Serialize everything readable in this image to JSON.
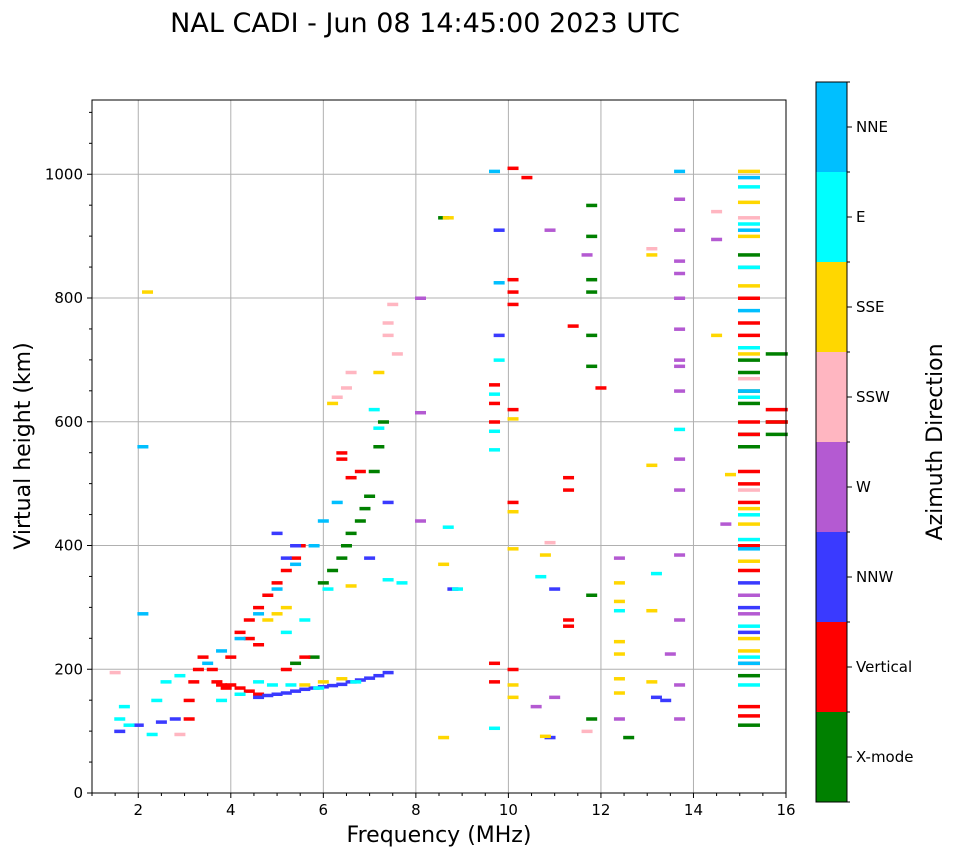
{
  "chart_data": {
    "type": "scatter",
    "title": "NAL CADI - Jun 08 14:45:00 2023 UTC",
    "xlabel": "Frequency (MHz)",
    "ylabel": "Virtual height (km)",
    "xlim": [
      1,
      16
    ],
    "ylim": [
      0,
      1120
    ],
    "xticks": [
      2,
      4,
      6,
      8,
      10,
      12,
      14,
      16
    ],
    "yticks": [
      0,
      200,
      400,
      600,
      800,
      1000
    ],
    "grid": true,
    "colorbar": {
      "label": "Azimuth Direction",
      "categories": [
        "X-mode",
        "Vertical",
        "NNW",
        "W",
        "SSW",
        "SSE",
        "E",
        "NNE"
      ],
      "colors": [
        "#008000",
        "#ff0000",
        "#3a3aff",
        "#b45ad2",
        "#ffb6c1",
        "#ffd700",
        "#00ffff",
        "#00bfff"
      ]
    },
    "series": [
      {
        "name": "X-mode",
        "color": "#008000",
        "points": [
          [
            6.0,
            340
          ],
          [
            6.2,
            360
          ],
          [
            6.4,
            380
          ],
          [
            6.5,
            400
          ],
          [
            6.6,
            420
          ],
          [
            6.8,
            440
          ],
          [
            6.9,
            460
          ],
          [
            7.0,
            480
          ],
          [
            7.1,
            520
          ],
          [
            7.2,
            560
          ],
          [
            7.3,
            600
          ],
          [
            11.8,
            950
          ],
          [
            11.8,
            900
          ],
          [
            11.8,
            830
          ],
          [
            11.8,
            810
          ],
          [
            11.8,
            740
          ],
          [
            11.8,
            690
          ],
          [
            11.8,
            320
          ],
          [
            11.8,
            120
          ],
          [
            12.6,
            90
          ],
          [
            8.6,
            930
          ],
          [
            15.2,
            870
          ],
          [
            15.2,
            850
          ],
          [
            15.2,
            700
          ],
          [
            15.2,
            680
          ],
          [
            15.2,
            650
          ],
          [
            15.2,
            630
          ],
          [
            15.2,
            580
          ],
          [
            15.2,
            560
          ],
          [
            15.2,
            190
          ],
          [
            15.2,
            110
          ],
          [
            15.8,
            710
          ],
          [
            15.8,
            600
          ],
          [
            15.8,
            580
          ],
          [
            5.8,
            220
          ],
          [
            5.4,
            210
          ]
        ]
      },
      {
        "name": "Vertical",
        "color": "#ff0000",
        "points": [
          [
            3.1,
            120
          ],
          [
            3.1,
            150
          ],
          [
            3.2,
            180
          ],
          [
            3.3,
            200
          ],
          [
            3.4,
            220
          ],
          [
            3.6,
            200
          ],
          [
            3.7,
            180
          ],
          [
            3.8,
            175
          ],
          [
            3.9,
            170
          ],
          [
            4.0,
            175
          ],
          [
            4.2,
            170
          ],
          [
            4.4,
            165
          ],
          [
            4.6,
            160
          ],
          [
            4.2,
            260
          ],
          [
            4.4,
            280
          ],
          [
            4.6,
            300
          ],
          [
            4.8,
            320
          ],
          [
            5.0,
            340
          ],
          [
            5.2,
            360
          ],
          [
            5.4,
            380
          ],
          [
            5.5,
            400
          ],
          [
            4.4,
            250
          ],
          [
            4.6,
            240
          ],
          [
            4.0,
            220
          ],
          [
            6.4,
            540
          ],
          [
            6.4,
            550
          ],
          [
            6.6,
            510
          ],
          [
            6.8,
            520
          ],
          [
            10.1,
            1010
          ],
          [
            10.4,
            995
          ],
          [
            10.1,
            830
          ],
          [
            10.1,
            810
          ],
          [
            10.1,
            790
          ],
          [
            10.1,
            620
          ],
          [
            10.1,
            470
          ],
          [
            9.7,
            660
          ],
          [
            9.7,
            630
          ],
          [
            9.7,
            600
          ],
          [
            9.7,
            210
          ],
          [
            9.7,
            180
          ],
          [
            10.1,
            200
          ],
          [
            11.3,
            510
          ],
          [
            11.3,
            490
          ],
          [
            11.3,
            270
          ],
          [
            11.3,
            280
          ],
          [
            12.0,
            655
          ],
          [
            11.4,
            755
          ],
          [
            15.2,
            800
          ],
          [
            15.2,
            760
          ],
          [
            15.2,
            740
          ],
          [
            15.2,
            600
          ],
          [
            15.2,
            580
          ],
          [
            15.2,
            520
          ],
          [
            15.2,
            500
          ],
          [
            15.2,
            470
          ],
          [
            15.2,
            400
          ],
          [
            15.2,
            360
          ],
          [
            15.2,
            210
          ],
          [
            15.2,
            140
          ],
          [
            15.2,
            125
          ],
          [
            15.8,
            620
          ],
          [
            15.8,
            600
          ],
          [
            5.6,
            220
          ],
          [
            5.2,
            200
          ]
        ]
      },
      {
        "name": "NNW",
        "color": "#3a3aff",
        "points": [
          [
            1.6,
            100
          ],
          [
            2.0,
            110
          ],
          [
            2.5,
            115
          ],
          [
            2.8,
            120
          ],
          [
            4.6,
            155
          ],
          [
            4.8,
            158
          ],
          [
            5.0,
            160
          ],
          [
            5.2,
            162
          ],
          [
            5.4,
            165
          ],
          [
            5.6,
            168
          ],
          [
            5.8,
            170
          ],
          [
            6.0,
            172
          ],
          [
            6.2,
            174
          ],
          [
            6.4,
            176
          ],
          [
            6.6,
            180
          ],
          [
            6.8,
            183
          ],
          [
            7.0,
            186
          ],
          [
            7.2,
            190
          ],
          [
            7.4,
            195
          ],
          [
            5.2,
            380
          ],
          [
            5.4,
            400
          ],
          [
            5.0,
            420
          ],
          [
            7.0,
            380
          ],
          [
            7.4,
            470
          ],
          [
            8.8,
            330
          ],
          [
            9.8,
            910
          ],
          [
            9.8,
            740
          ],
          [
            11.0,
            330
          ],
          [
            13.4,
            150
          ],
          [
            13.2,
            155
          ],
          [
            10.9,
            90
          ],
          [
            15.2,
            850
          ],
          [
            15.2,
            340
          ],
          [
            15.2,
            300
          ],
          [
            15.2,
            260
          ]
        ]
      },
      {
        "name": "W",
        "color": "#b45ad2",
        "points": [
          [
            8.1,
            800
          ],
          [
            8.1,
            615
          ],
          [
            8.1,
            440
          ],
          [
            10.9,
            910
          ],
          [
            11.7,
            870
          ],
          [
            12.4,
            380
          ],
          [
            12.4,
            120
          ],
          [
            13.7,
            960
          ],
          [
            13.7,
            910
          ],
          [
            13.7,
            860
          ],
          [
            13.7,
            840
          ],
          [
            13.7,
            800
          ],
          [
            13.7,
            750
          ],
          [
            13.7,
            700
          ],
          [
            13.7,
            690
          ],
          [
            13.7,
            650
          ],
          [
            13.7,
            540
          ],
          [
            13.7,
            490
          ],
          [
            13.7,
            385
          ],
          [
            13.7,
            280
          ],
          [
            13.7,
            175
          ],
          [
            13.7,
            120
          ],
          [
            13.5,
            225
          ],
          [
            14.5,
            895
          ],
          [
            10.6,
            140
          ],
          [
            11.0,
            155
          ],
          [
            14.7,
            435
          ],
          [
            15.2,
            320
          ],
          [
            15.2,
            290
          ]
        ]
      },
      {
        "name": "SSW",
        "color": "#ffb6c1",
        "points": [
          [
            1.5,
            195
          ],
          [
            2.9,
            95
          ],
          [
            6.6,
            680
          ],
          [
            6.5,
            655
          ],
          [
            7.4,
            760
          ],
          [
            7.4,
            740
          ],
          [
            7.6,
            710
          ],
          [
            7.5,
            790
          ],
          [
            6.3,
            640
          ],
          [
            10.9,
            405
          ],
          [
            11.7,
            100
          ],
          [
            13.1,
            880
          ],
          [
            14.5,
            940
          ],
          [
            15.2,
            930
          ],
          [
            15.2,
            670
          ],
          [
            15.2,
            490
          ]
        ]
      },
      {
        "name": "SSE",
        "color": "#ffd700",
        "points": [
          [
            2.2,
            810
          ],
          [
            6.2,
            630
          ],
          [
            6.6,
            335
          ],
          [
            7.2,
            680
          ],
          [
            8.6,
            90
          ],
          [
            8.7,
            930
          ],
          [
            8.6,
            370
          ],
          [
            10.1,
            605
          ],
          [
            10.1,
            455
          ],
          [
            10.1,
            395
          ],
          [
            10.1,
            175
          ],
          [
            10.1,
            155
          ],
          [
            10.8,
            385
          ],
          [
            10.8,
            92
          ],
          [
            12.4,
            340
          ],
          [
            12.4,
            310
          ],
          [
            12.4,
            245
          ],
          [
            12.4,
            225
          ],
          [
            12.4,
            185
          ],
          [
            12.4,
            162
          ],
          [
            13.1,
            870
          ],
          [
            13.1,
            530
          ],
          [
            13.1,
            295
          ],
          [
            13.1,
            180
          ],
          [
            14.5,
            740
          ],
          [
            14.8,
            515
          ],
          [
            15.2,
            1005
          ],
          [
            15.2,
            955
          ],
          [
            15.2,
            900
          ],
          [
            15.2,
            820
          ],
          [
            15.2,
            710
          ],
          [
            15.2,
            460
          ],
          [
            15.2,
            435
          ],
          [
            15.2,
            375
          ],
          [
            15.2,
            250
          ],
          [
            15.2,
            230
          ],
          [
            5.2,
            300
          ],
          [
            5.0,
            290
          ],
          [
            4.8,
            280
          ],
          [
            5.6,
            175
          ],
          [
            6.0,
            180
          ],
          [
            6.4,
            185
          ]
        ]
      },
      {
        "name": "E",
        "color": "#00ffff",
        "points": [
          [
            1.6,
            120
          ],
          [
            1.7,
            140
          ],
          [
            1.8,
            110
          ],
          [
            2.3,
            95
          ],
          [
            2.4,
            150
          ],
          [
            2.6,
            180
          ],
          [
            2.9,
            190
          ],
          [
            3.8,
            150
          ],
          [
            4.2,
            160
          ],
          [
            4.6,
            180
          ],
          [
            4.9,
            175
          ],
          [
            5.3,
            175
          ],
          [
            5.9,
            170
          ],
          [
            6.7,
            180
          ],
          [
            7.4,
            345
          ],
          [
            7.7,
            340
          ],
          [
            7.2,
            590
          ],
          [
            7.1,
            620
          ],
          [
            8.7,
            430
          ],
          [
            8.9,
            330
          ],
          [
            9.7,
            645
          ],
          [
            9.7,
            585
          ],
          [
            9.7,
            555
          ],
          [
            9.7,
            105
          ],
          [
            9.8,
            700
          ],
          [
            10.7,
            350
          ],
          [
            12.4,
            295
          ],
          [
            13.2,
            355
          ],
          [
            13.7,
            588
          ],
          [
            15.2,
            980
          ],
          [
            15.2,
            920
          ],
          [
            15.2,
            850
          ],
          [
            15.2,
            720
          ],
          [
            15.2,
            640
          ],
          [
            15.2,
            450
          ],
          [
            15.2,
            410
          ],
          [
            15.2,
            270
          ],
          [
            15.2,
            220
          ],
          [
            15.2,
            175
          ],
          [
            5.2,
            260
          ],
          [
            5.6,
            280
          ],
          [
            6.1,
            330
          ]
        ]
      },
      {
        "name": "NNE",
        "color": "#00bfff",
        "points": [
          [
            2.1,
            290
          ],
          [
            2.1,
            560
          ],
          [
            3.5,
            210
          ],
          [
            3.8,
            230
          ],
          [
            4.2,
            250
          ],
          [
            4.6,
            290
          ],
          [
            5.0,
            330
          ],
          [
            5.4,
            370
          ],
          [
            5.8,
            400
          ],
          [
            6.0,
            440
          ],
          [
            6.3,
            470
          ],
          [
            9.7,
            1005
          ],
          [
            9.8,
            825
          ],
          [
            13.7,
            1005
          ],
          [
            15.2,
            995
          ],
          [
            15.2,
            910
          ],
          [
            15.2,
            780
          ],
          [
            15.2,
            650
          ],
          [
            15.2,
            395
          ],
          [
            15.2,
            210
          ]
        ]
      }
    ]
  }
}
